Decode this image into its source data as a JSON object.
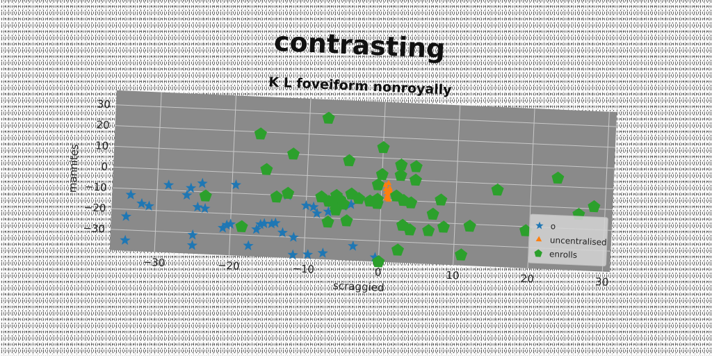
{
  "chart_data": {
    "type": "scatter",
    "title": "contrasting",
    "subtitle": "K L foveiform nonroyally",
    "xlabel": "scraggied",
    "ylabel": "mannites",
    "xlim": [
      -36,
      31
    ],
    "ylim": [
      -40,
      37
    ],
    "xticks": [
      -30,
      -20,
      -10,
      0,
      10,
      20,
      30
    ],
    "yticks": [
      -30,
      -20,
      -10,
      0,
      10,
      20,
      30
    ],
    "grid": true,
    "legend_position": "bottom-right",
    "series": [
      {
        "name": "o",
        "marker": "star",
        "color": "#1f77b4",
        "points": [
          [
            -33.5,
            -13
          ],
          [
            -34,
            -23.5
          ],
          [
            -34,
            -35
          ],
          [
            -32,
            -17
          ],
          [
            -31,
            -18
          ],
          [
            -28.5,
            -7.5
          ],
          [
            -26,
            -12
          ],
          [
            -25.5,
            -8.5
          ],
          [
            -24,
            -6
          ],
          [
            -24.5,
            -17.5
          ],
          [
            -25,
            -31
          ],
          [
            -25,
            -36
          ],
          [
            -23.5,
            -18
          ],
          [
            -21,
            -27
          ],
          [
            -20.5,
            -25.5
          ],
          [
            -20,
            -25
          ],
          [
            -19.5,
            -6
          ],
          [
            -17.5,
            -35
          ],
          [
            -16.5,
            -27
          ],
          [
            -16,
            -24.5
          ],
          [
            -15.5,
            -24
          ],
          [
            -14.5,
            -24
          ],
          [
            -14,
            -23.5
          ],
          [
            -13,
            -28
          ],
          [
            -12.5,
            -10
          ],
          [
            -11.5,
            -30
          ],
          [
            -11.5,
            -38.5
          ],
          [
            -10,
            -14.5
          ],
          [
            -9.5,
            -38
          ],
          [
            -9,
            -15
          ],
          [
            -8.5,
            -18
          ],
          [
            -7,
            -17
          ],
          [
            -7.5,
            -37
          ],
          [
            -5,
            -14
          ],
          [
            -4,
            -13
          ],
          [
            -3.5,
            -33
          ],
          [
            -0.5,
            -38
          ]
        ]
      },
      {
        "name": "uncentralised",
        "marker": "triangle",
        "color": "#ff7f0e",
        "points": [
          [
            0.5,
            -3
          ],
          [
            0.6,
            -5
          ],
          [
            0.7,
            -6.5
          ],
          [
            0.8,
            -8
          ],
          [
            0.9,
            -9
          ],
          [
            1.0,
            -7
          ],
          [
            1.1,
            -4.5
          ],
          [
            0.9,
            -2
          ],
          [
            1.2,
            -6
          ],
          [
            0.7,
            -9.5
          ],
          [
            1.0,
            -10
          ]
        ]
      },
      {
        "name": "enrolls",
        "marker": "pentagon",
        "color": "#2ca02c",
        "points": [
          [
            -7.5,
            28
          ],
          [
            -16.5,
            19
          ],
          [
            -12,
            10
          ],
          [
            -4.5,
            8
          ],
          [
            0,
            15
          ],
          [
            2.5,
            7
          ],
          [
            4.5,
            6.5
          ],
          [
            -15.5,
            2
          ],
          [
            0,
            2
          ],
          [
            2.5,
            2
          ],
          [
            4.5,
            0
          ],
          [
            -0.5,
            -3
          ],
          [
            2,
            -8
          ],
          [
            3,
            -10
          ],
          [
            4,
            -11
          ],
          [
            -23.5,
            -12
          ],
          [
            -12.5,
            -9
          ],
          [
            -14,
            -11
          ],
          [
            -8,
            -10
          ],
          [
            -7,
            -12
          ],
          [
            -6,
            -9
          ],
          [
            -5.5,
            -11
          ],
          [
            -5,
            -13
          ],
          [
            -4,
            -8
          ],
          [
            -3,
            -10
          ],
          [
            -1.5,
            -11
          ],
          [
            -0.5,
            -10
          ],
          [
            -0.5,
            -12
          ],
          [
            -6,
            -16
          ],
          [
            -7,
            -22
          ],
          [
            -4.5,
            -21
          ],
          [
            -18.5,
            -26
          ],
          [
            -6.5,
            -12
          ],
          [
            8,
            -9
          ],
          [
            7,
            -16
          ],
          [
            6.5,
            -24
          ],
          [
            8.5,
            -22
          ],
          [
            12,
            -21
          ],
          [
            3,
            -22
          ],
          [
            4,
            -24
          ],
          [
            15.5,
            -3
          ],
          [
            23.5,
            4
          ],
          [
            26.5,
            -13
          ],
          [
            28.5,
            -9
          ],
          [
            19.5,
            -22
          ],
          [
            2.5,
            -34
          ],
          [
            11,
            -35
          ],
          [
            0,
            -40
          ]
        ]
      }
    ]
  }
}
